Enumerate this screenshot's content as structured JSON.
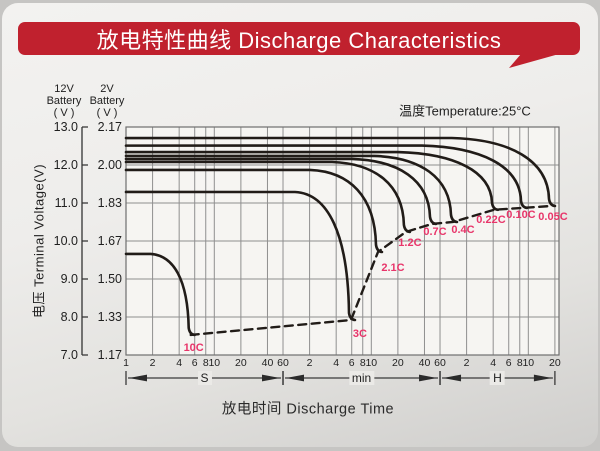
{
  "banner": {
    "title": "放电特性曲线 Discharge Characteristics",
    "color": "#c0212e"
  },
  "axis_headers": {
    "col1": "12V\nBattery\n( V )",
    "col2": "2V\nBattery\n( V )"
  },
  "annotations": {
    "temperature": "温度Temperature:25°C"
  },
  "colors": {
    "banner_red": "#c0212e",
    "curve_black": "#211c18",
    "curve_label_pink": "#e8356a",
    "grid_gray": "#8f8f8f"
  },
  "chart_data": {
    "type": "line",
    "title": "放电特性曲线 Discharge Characteristics",
    "temperature": "25°C",
    "xlabel": "放电时间 Discharge Time",
    "ylabel": "电压 Terminal Voltage(V)",
    "x_axis": {
      "scale": "log-time",
      "segments": [
        {
          "unit": "S",
          "seconds_per_unit": 1,
          "ticks": [
            1,
            2,
            4,
            6,
            8,
            10,
            20,
            40,
            60
          ]
        },
        {
          "unit": "min",
          "seconds_per_unit": 60,
          "ticks": [
            2,
            4,
            6,
            8,
            10,
            20,
            40,
            60
          ]
        },
        {
          "unit": "H",
          "seconds_per_unit": 3600,
          "ticks": [
            2,
            4,
            6,
            8,
            10,
            20
          ]
        }
      ]
    },
    "y_axis": {
      "v12_ticks": [
        "13.0",
        "12.0",
        "11.0",
        "10.0",
        "9.0",
        "8.0",
        "7.0"
      ],
      "v2_ticks": [
        "2.17",
        "2.00",
        "1.83",
        "1.67",
        "1.50",
        "1.33",
        "1.17"
      ],
      "range_12v": [
        7.0,
        13.0
      ]
    },
    "series": [
      {
        "label": "10C",
        "start_v12": 9.66,
        "bend_t_s": 1.9,
        "end_t_s": 5.4,
        "end_v12": 7.53,
        "label_offset": [
          3,
          13
        ]
      },
      {
        "label": "3C",
        "start_v12": 11.29,
        "bend_t_s": 82,
        "end_t_s": 353,
        "end_v12": 7.92,
        "label_offset": [
          9,
          14
        ]
      },
      {
        "label": "2.1C",
        "start_v12": 11.87,
        "bend_t_s": 121,
        "end_t_s": 714,
        "end_v12": 9.71,
        "label_offset": [
          15,
          16
        ]
      },
      {
        "label": "1.2C",
        "start_v12": 12.08,
        "bend_t_s": 216,
        "end_t_s": 1480,
        "end_v12": 10.24,
        "label_offset": [
          4,
          11
        ]
      },
      {
        "label": "0.7C",
        "start_v12": 12.16,
        "bend_t_s": 363,
        "end_t_s": 2920,
        "end_v12": 10.45,
        "label_offset": [
          3,
          8
        ]
      },
      {
        "label": "0.4C",
        "start_v12": 12.24,
        "bend_t_s": 645,
        "end_t_s": 5050,
        "end_v12": 10.5,
        "label_offset": [
          10,
          8
        ]
      },
      {
        "label": "0.22C",
        "start_v12": 12.34,
        "bend_t_s": 1200,
        "end_t_s": 14700,
        "end_v12": 10.82,
        "label_offset": [
          -3,
          10
        ]
      },
      {
        "label": "0.10C",
        "start_v12": 12.51,
        "bend_t_s": 2250,
        "end_t_s": 31300,
        "end_v12": 10.87,
        "label_offset": [
          -2,
          7
        ]
      },
      {
        "label": "0.05C",
        "start_v12": 12.71,
        "bend_t_s": 4900,
        "end_t_s": 65000,
        "end_v12": 10.92,
        "label_offset": [
          2,
          11
        ]
      }
    ],
    "cutoff_line": "dashed locus through each curve's discharge end point",
    "legend_position": "labels at curve ends",
    "grid": true
  }
}
